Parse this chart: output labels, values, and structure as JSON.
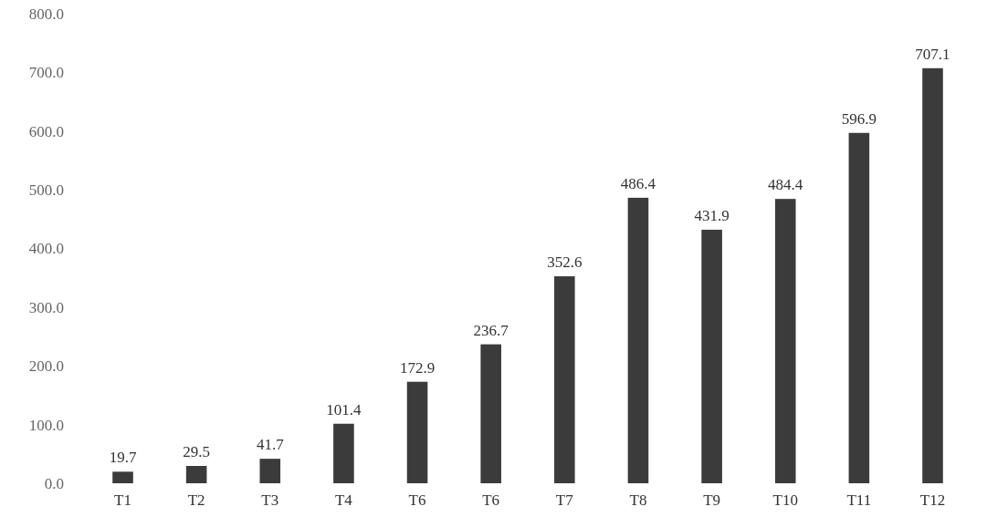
{
  "chart_data": {
    "type": "bar",
    "categories": [
      "T1",
      "T2",
      "T3",
      "T4",
      "T6",
      "T6",
      "T7",
      "T8",
      "T9",
      "T10",
      "T11",
      "T12"
    ],
    "values": [
      19.7,
      29.5,
      41.7,
      101.4,
      172.9,
      236.7,
      352.6,
      486.4,
      431.9,
      484.4,
      596.9,
      707.1
    ],
    "color": "#3b3b3b",
    "ylim": [
      0,
      800
    ],
    "yticks": [
      {
        "value": 0,
        "label": "0.0"
      },
      {
        "value": 100,
        "label": "100.0"
      },
      {
        "value": 200,
        "label": "200.0"
      },
      {
        "value": 300,
        "label": "300.0"
      },
      {
        "value": 400,
        "label": "400.0"
      },
      {
        "value": 500,
        "label": "500.0"
      },
      {
        "value": 600,
        "label": "600.0"
      },
      {
        "value": 700,
        "label": "700.0"
      },
      {
        "value": 800,
        "label": "800.0"
      }
    ],
    "data_labels": true,
    "grid": false
  }
}
